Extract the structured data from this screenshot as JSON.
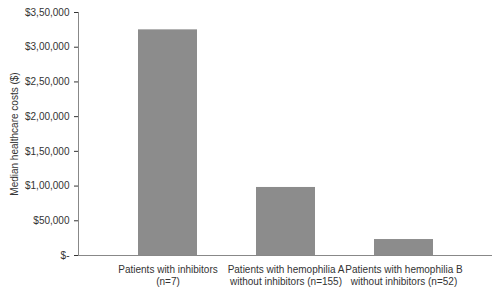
{
  "chart_data": {
    "type": "bar",
    "y_label": "Median healthcare costs ($)",
    "categories": [
      "Patients with inhibitors\n(n=7)",
      "Patients with hemophilia A\nwithout inhibitors (n=155)",
      "Patients with hemophilia B\nwithout inhibitors (n=52)"
    ],
    "values": [
      325000,
      98000,
      23000
    ],
    "color": "#8c8c8c",
    "ylim": [
      0,
      350000
    ],
    "yticks": [
      {
        "value": 0,
        "label": "$-"
      },
      {
        "value": 50000,
        "label": "$50,000"
      },
      {
        "value": 100000,
        "label": "$1,00,000"
      },
      {
        "value": 150000,
        "label": "$1,50,000"
      },
      {
        "value": 200000,
        "label": "$2,00,000"
      },
      {
        "value": 250000,
        "label": "$2,50,000"
      },
      {
        "value": 300000,
        "label": "$3,00,000"
      },
      {
        "value": 350000,
        "label": "$3,50,000"
      }
    ],
    "grid": false
  }
}
